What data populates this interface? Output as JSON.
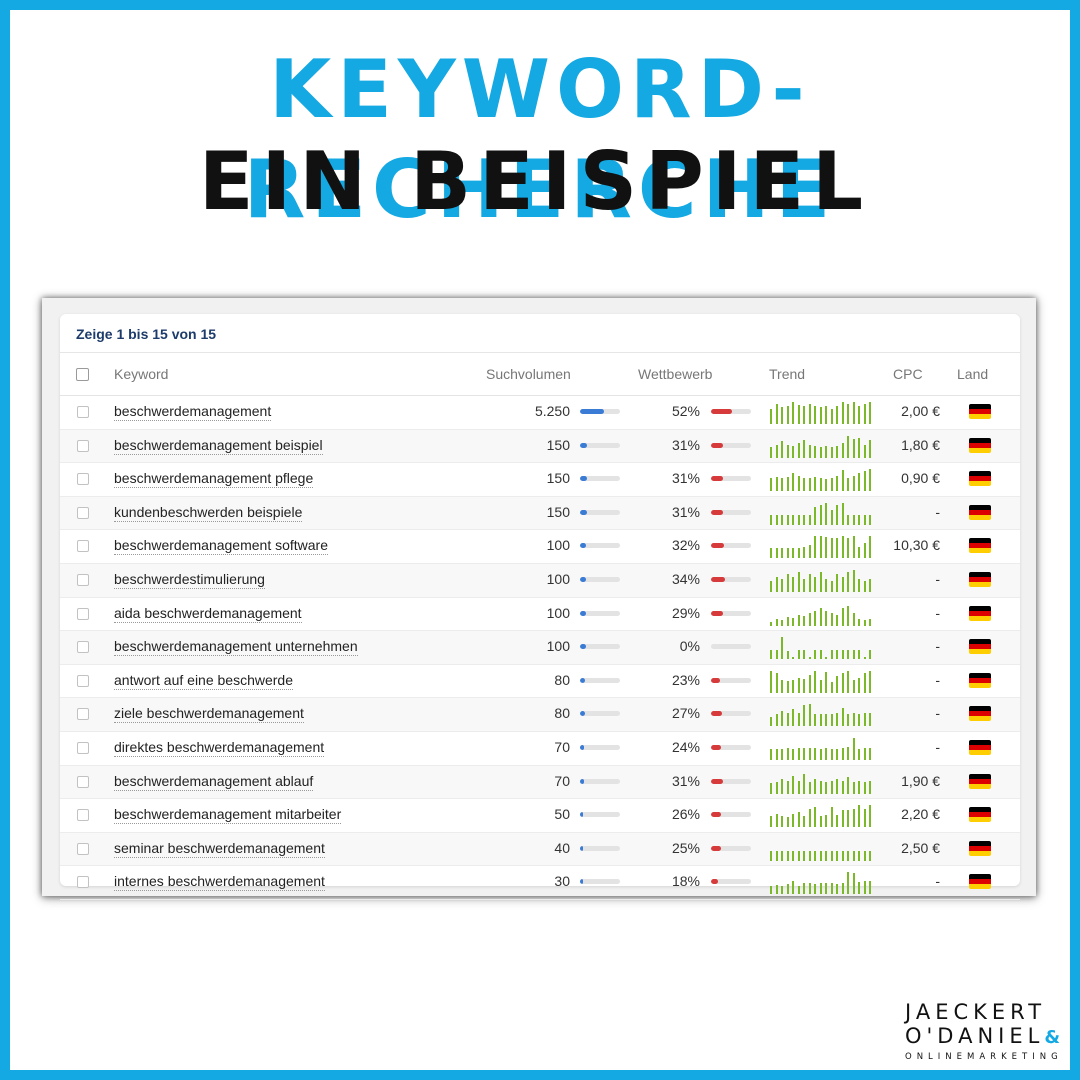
{
  "heading": {
    "line1": "KEYWORD-RECHERCHE",
    "line2": "EIN BEISPIEL"
  },
  "table": {
    "showing": "Zeige 1 bis 15 von 15",
    "columns": {
      "keyword": "Keyword",
      "volume": "Suchvolumen",
      "competition": "Wettbewerb",
      "trend": "Trend",
      "cpc": "CPC",
      "country": "Land"
    },
    "rows": [
      {
        "keyword": "beschwerdemanagement",
        "volume": "5.250",
        "volume_level": 0.6,
        "competition": "52%",
        "competition_level": 0.52,
        "cpc": "2,00 €",
        "trend": [
          0.7,
          0.9,
          0.75,
          0.8,
          1,
          0.85,
          0.8,
          0.9,
          0.8,
          0.75,
          0.8,
          0.7,
          0.8,
          1,
          0.9,
          1,
          0.8,
          0.9,
          1
        ]
      },
      {
        "keyword": "beschwerdemanagement beispiel",
        "volume": "150",
        "volume_level": 0.18,
        "competition": "31%",
        "competition_level": 0.31,
        "cpc": "1,80 €",
        "trend": [
          0.5,
          0.6,
          0.75,
          0.6,
          0.55,
          0.7,
          0.8,
          0.6,
          0.55,
          0.5,
          0.55,
          0.5,
          0.55,
          0.7,
          1,
          0.85,
          0.9,
          0.6,
          0.8
        ]
      },
      {
        "keyword": "beschwerdemanagement pflege",
        "volume": "150",
        "volume_level": 0.18,
        "competition": "31%",
        "competition_level": 0.31,
        "cpc": "0,90 €",
        "trend": [
          0.6,
          0.65,
          0.6,
          0.65,
          0.8,
          0.7,
          0.6,
          0.6,
          0.65,
          0.6,
          0.55,
          0.6,
          0.7,
          0.95,
          0.6,
          0.7,
          0.8,
          0.9,
          1
        ]
      },
      {
        "keyword": "kundenbeschwerden beispiele",
        "volume": "150",
        "volume_level": 0.18,
        "competition": "31%",
        "competition_level": 0.31,
        "cpc": "-",
        "trend": [
          0.45,
          0.45,
          0.45,
          0.45,
          0.45,
          0.45,
          0.45,
          0.45,
          0.8,
          0.9,
          1,
          0.7,
          0.9,
          1,
          0.45,
          0.45,
          0.45,
          0.45,
          0.45
        ]
      },
      {
        "keyword": "beschwerdemanagement software",
        "volume": "100",
        "volume_level": 0.15,
        "competition": "32%",
        "competition_level": 0.32,
        "cpc": "10,30 €",
        "trend": [
          0.45,
          0.45,
          0.45,
          0.45,
          0.45,
          0.45,
          0.5,
          0.6,
          1,
          1,
          0.95,
          0.9,
          0.9,
          1,
          0.9,
          1,
          0.5,
          0.7,
          1
        ]
      },
      {
        "keyword": "beschwerdestimulierung",
        "volume": "100",
        "volume_level": 0.15,
        "competition": "34%",
        "competition_level": 0.34,
        "cpc": "-",
        "trend": [
          0.5,
          0.7,
          0.6,
          0.8,
          0.7,
          0.9,
          0.6,
          0.8,
          0.7,
          0.9,
          0.6,
          0.5,
          0.8,
          0.7,
          0.9,
          1,
          0.6,
          0.5,
          0.6
        ]
      },
      {
        "keyword": "aida beschwerdemanagement",
        "volume": "100",
        "volume_level": 0.15,
        "competition": "29%",
        "competition_level": 0.29,
        "cpc": "-",
        "trend": [
          0.2,
          0.3,
          0.25,
          0.4,
          0.35,
          0.5,
          0.45,
          0.6,
          0.7,
          0.8,
          0.7,
          0.6,
          0.5,
          0.8,
          0.9,
          0.6,
          0.3,
          0.25,
          0.3
        ]
      },
      {
        "keyword": "beschwerdemanagement unternehmen",
        "volume": "100",
        "volume_level": 0.15,
        "competition": "0%",
        "competition_level": 0.0,
        "cpc": "-",
        "trend": [
          0.4,
          0.4,
          1,
          0.35,
          0.1,
          0.4,
          0.4,
          0.1,
          0.4,
          0.4,
          0.1,
          0.4,
          0.4,
          0.4,
          0.4,
          0.4,
          0.4,
          0.1,
          0.4
        ]
      },
      {
        "keyword": "antwort auf eine beschwerde",
        "volume": "80",
        "volume_level": 0.12,
        "competition": "23%",
        "competition_level": 0.23,
        "cpc": "-",
        "trend": [
          1,
          0.9,
          0.6,
          0.55,
          0.6,
          0.7,
          0.65,
          0.8,
          1,
          0.6,
          0.95,
          0.5,
          0.75,
          0.9,
          1,
          0.6,
          0.7,
          0.9,
          1
        ]
      },
      {
        "keyword": "ziele beschwerdemanagement",
        "volume": "80",
        "volume_level": 0.12,
        "competition": "27%",
        "competition_level": 0.27,
        "cpc": "-",
        "trend": [
          0.4,
          0.55,
          0.7,
          0.6,
          0.75,
          0.6,
          0.95,
          1,
          0.55,
          0.55,
          0.55,
          0.55,
          0.6,
          0.8,
          0.55,
          0.6,
          0.55,
          0.6,
          0.6
        ]
      },
      {
        "keyword": "direktes beschwerdemanagement",
        "volume": "70",
        "volume_level": 0.1,
        "competition": "24%",
        "competition_level": 0.24,
        "cpc": "-",
        "trend": [
          0.5,
          0.5,
          0.5,
          0.55,
          0.5,
          0.55,
          0.55,
          0.55,
          0.55,
          0.5,
          0.55,
          0.5,
          0.5,
          0.55,
          0.6,
          1,
          0.5,
          0.55,
          0.55
        ]
      },
      {
        "keyword": "beschwerdemanagement ablauf",
        "volume": "70",
        "volume_level": 0.1,
        "competition": "31%",
        "competition_level": 0.31,
        "cpc": "1,90 €",
        "trend": [
          0.5,
          0.55,
          0.7,
          0.6,
          0.8,
          0.6,
          0.9,
          0.55,
          0.7,
          0.6,
          0.55,
          0.6,
          0.7,
          0.6,
          0.75,
          0.55,
          0.6,
          0.55,
          0.6
        ]
      },
      {
        "keyword": "beschwerdemanagement mitarbeiter",
        "volume": "50",
        "volume_level": 0.08,
        "competition": "26%",
        "competition_level": 0.26,
        "cpc": "2,20 €",
        "trend": [
          0.5,
          0.6,
          0.5,
          0.45,
          0.6,
          0.7,
          0.5,
          0.8,
          0.9,
          0.5,
          0.55,
          0.9,
          0.55,
          0.75,
          0.75,
          0.8,
          1,
          0.8,
          1
        ]
      },
      {
        "keyword": "seminar beschwerdemanagement",
        "volume": "40",
        "volume_level": 0.06,
        "competition": "25%",
        "competition_level": 0.25,
        "cpc": "2,50 €",
        "trend": [
          0.45,
          0.45,
          0.45,
          0.45,
          0.45,
          0.45,
          0.45,
          0.45,
          0.45,
          0.45,
          0.45,
          0.45,
          0.45,
          0.45,
          0.45,
          0.45,
          0.45,
          0.45,
          0.45
        ]
      },
      {
        "keyword": "internes beschwerdemanagement",
        "volume": "30",
        "volume_level": 0.05,
        "competition": "18%",
        "competition_level": 0.18,
        "cpc": "-",
        "trend": [
          0.35,
          0.4,
          0.35,
          0.45,
          0.6,
          0.35,
          0.5,
          0.5,
          0.45,
          0.5,
          0.5,
          0.5,
          0.45,
          0.5,
          1,
          0.95,
          0.55,
          0.6,
          0.6
        ]
      }
    ]
  },
  "country_flag": {
    "name": "germany-flag",
    "colors": [
      "#000000",
      "#dd0000",
      "#ffce00"
    ]
  },
  "colors": {
    "brand": "#14a9e3",
    "volume_bar": "#3a7bd5",
    "competition_bar": "#d63a3a",
    "trend": "#7bb82a"
  },
  "logo": {
    "line1": "JAECKERT",
    "line2": "O'DANIEL",
    "symbol": "&",
    "line3": "ONLINEMARKETING"
  }
}
